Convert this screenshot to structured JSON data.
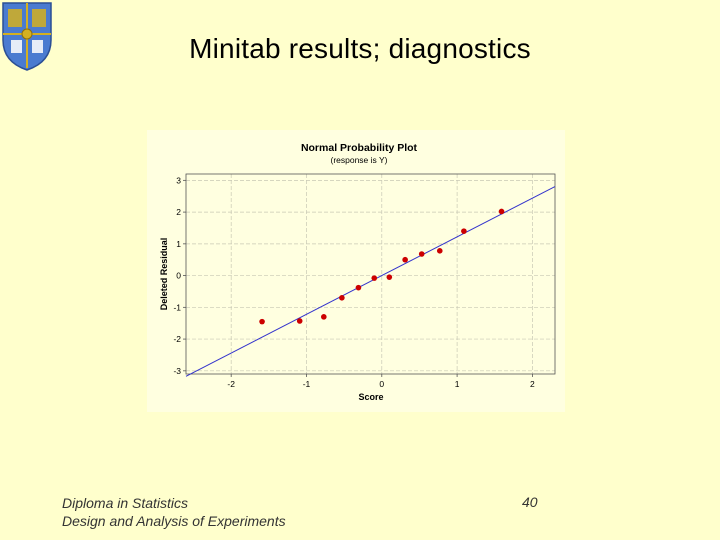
{
  "slide": {
    "title": "Minitab results; diagnostics",
    "footer_line1": "Diploma in Statistics",
    "footer_line2": "Design and Analysis of Experiments",
    "page_number": "40"
  },
  "logo": {
    "icon": "university-crest-icon",
    "colors": [
      "#4a7bd0",
      "#d4b020"
    ]
  },
  "chart_data": {
    "type": "scatter",
    "title": "Normal Probability Plot",
    "subtitle": "(response is Y)",
    "xlabel": "Score",
    "ylabel": "Deleted Residual",
    "xlim": [
      -2.6,
      2.3
    ],
    "ylim": [
      -3.1,
      3.2
    ],
    "xticks": [
      -2,
      -1,
      0,
      1,
      2
    ],
    "yticks": [
      -3,
      -2,
      -1,
      0,
      1,
      2,
      3
    ],
    "grid": true,
    "background_color": "#ffffe0",
    "point_color": "#cc0000",
    "line_color": "#3333cc",
    "points": [
      {
        "x": -1.59,
        "y": -1.45
      },
      {
        "x": -1.09,
        "y": -1.43
      },
      {
        "x": -0.77,
        "y": -1.3
      },
      {
        "x": -0.53,
        "y": -0.7
      },
      {
        "x": -0.31,
        "y": -0.38
      },
      {
        "x": -0.1,
        "y": -0.08
      },
      {
        "x": 0.1,
        "y": -0.05
      },
      {
        "x": 0.31,
        "y": 0.5
      },
      {
        "x": 0.53,
        "y": 0.68
      },
      {
        "x": 0.77,
        "y": 0.78
      },
      {
        "x": 1.09,
        "y": 1.4
      },
      {
        "x": 1.59,
        "y": 2.02
      }
    ],
    "fit_line": {
      "slope": 1.22,
      "intercept": 0.0
    }
  }
}
